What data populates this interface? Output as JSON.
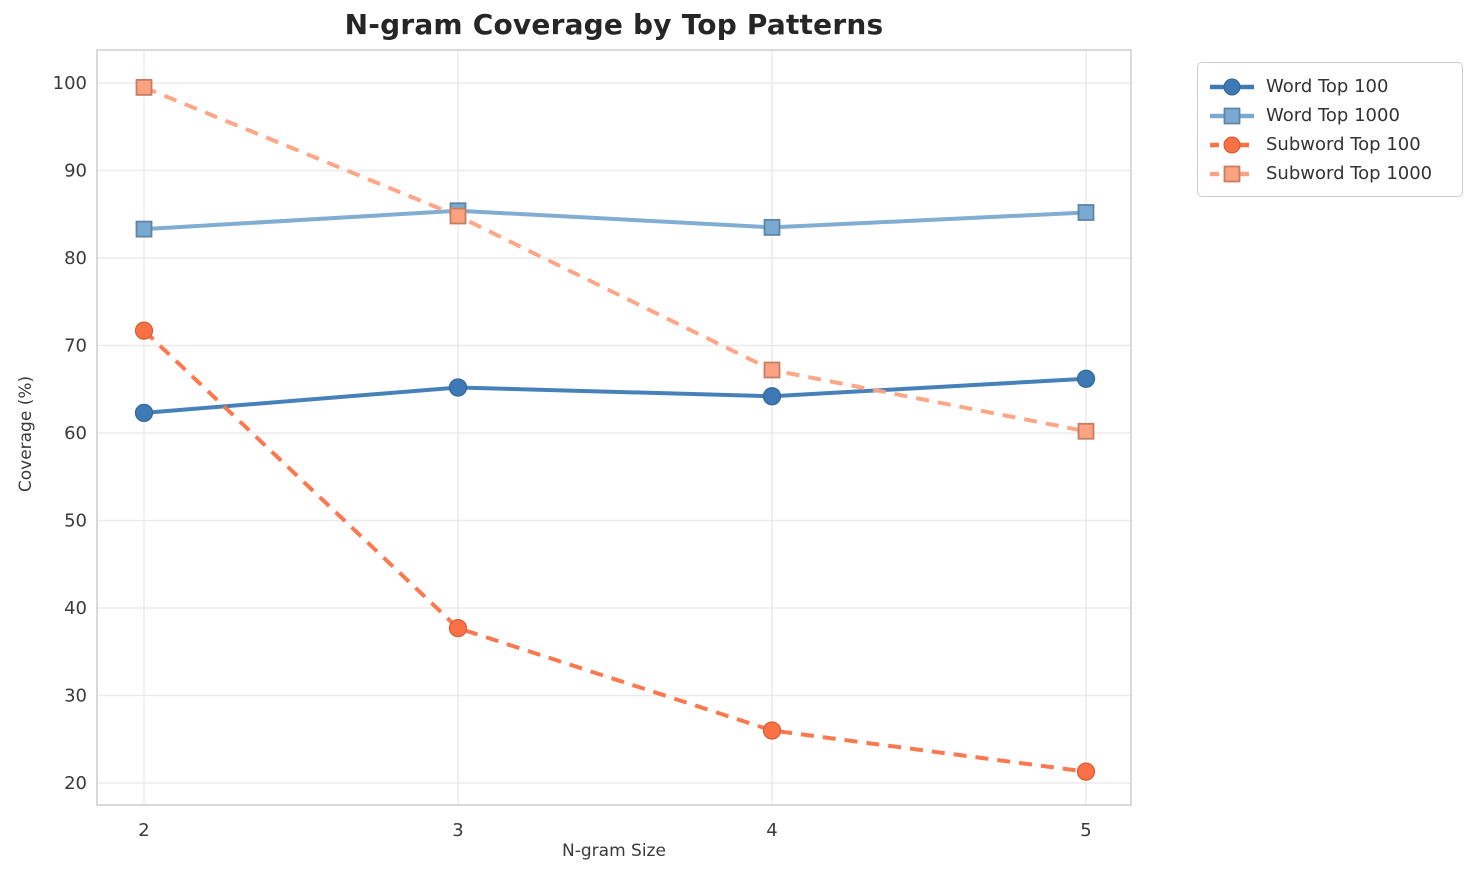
{
  "title": "N-gram Coverage by Top Patterns",
  "chart_data": {
    "type": "line",
    "title": "N-gram Coverage by Top Patterns",
    "xlabel": "N-gram Size",
    "ylabel": "Coverage (%)",
    "x": [
      2,
      3,
      4,
      5
    ],
    "x_tick_labels": [
      "2",
      "3",
      "4",
      "5"
    ],
    "y_ticks": [
      20,
      30,
      40,
      50,
      60,
      70,
      80,
      90,
      100
    ],
    "ylim": [
      17,
      104
    ],
    "grid": true,
    "legend_position": "outside-top-right",
    "series": [
      {
        "name": "Word Top 100",
        "values": [
          62.3,
          65.2,
          64.2,
          66.2
        ],
        "color": "#3d7ab5",
        "marker": "circle",
        "line_style": "solid"
      },
      {
        "name": "Word Top 1000",
        "values": [
          83.3,
          85.4,
          83.5,
          85.2
        ],
        "color": "#7aa9d1",
        "marker": "square",
        "line_style": "solid"
      },
      {
        "name": "Subword Top 100",
        "values": [
          71.7,
          37.7,
          26.0,
          21.3
        ],
        "color": "#fc7144",
        "marker": "circle",
        "line_style": "dashed"
      },
      {
        "name": "Subword Top 1000",
        "values": [
          99.5,
          84.8,
          67.2,
          60.2
        ],
        "color": "#fda281",
        "marker": "square",
        "line_style": "dashed"
      }
    ],
    "style": {
      "grid_color": "#ebebeb",
      "spine_color": "#d0d0d0",
      "tick_label_color": "#3a3a3a",
      "title_color": "#262626",
      "background": "#ffffff",
      "line_width": 4,
      "dash_pattern": "13 9"
    }
  }
}
